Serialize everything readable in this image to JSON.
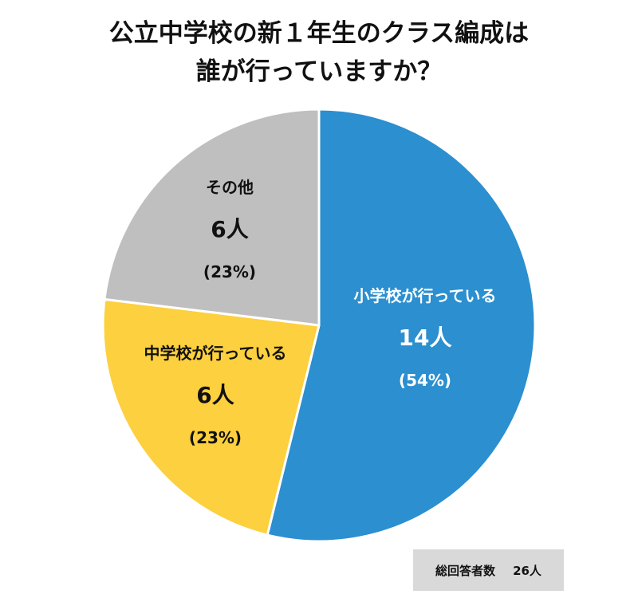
{
  "title_lines": [
    "公立中学校の新１年生のクラス編成は",
    "誰が行っていますか？"
  ],
  "chart_data": {
    "type": "pie",
    "start_angle_deg": 0,
    "direction": "clockwise",
    "slices": [
      {
        "label": "小学校が行っている",
        "count_label": "14人",
        "value": 14,
        "percent_label": "(54%)",
        "color": "#2b8fd0",
        "text_color": "#ffffff"
      },
      {
        "label": "中学校が行っている",
        "count_label": "6人",
        "value": 6,
        "percent_label": "(23%)",
        "color": "#fcd03e",
        "text_color": "#111111"
      },
      {
        "label": "その他",
        "count_label": "6人",
        "value": 6,
        "percent_label": "(23%)",
        "color": "#bfbfbf",
        "text_color": "#111111"
      }
    ]
  },
  "total": {
    "label": "総回答者数",
    "value": "26人"
  }
}
